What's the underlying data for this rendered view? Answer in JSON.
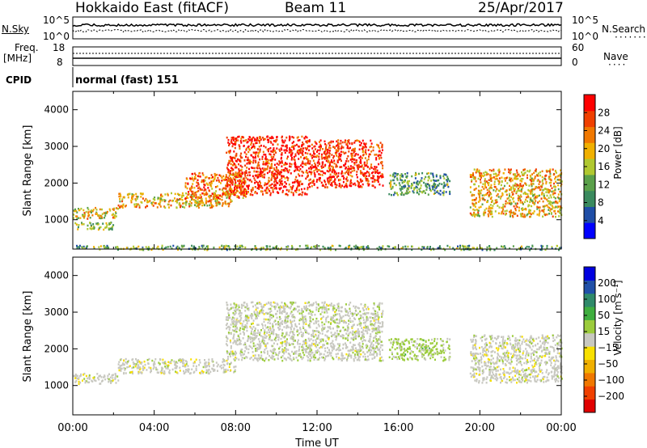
{
  "header": {
    "radar": "Hokkaido East (fitACF)",
    "beam": "Beam 11",
    "date": "25/Apr/2017"
  },
  "status_panels": {
    "nsky_label": "N.Sky",
    "nsky_ticks": [
      "10^5",
      "10^0"
    ],
    "nsearch_label": "N.Search",
    "nsearch_ticks": [
      "10^5",
      "10^0"
    ],
    "freq_label": "Freq.",
    "freq_unit": "[MHz]",
    "freq_ticks": [
      "18",
      "8"
    ],
    "nave_label": "Nave",
    "nave_ticks": [
      "60",
      "0"
    ],
    "cpid_label": "CPID",
    "cpid_mode": "normal (fast) 151"
  },
  "colors": {
    "power_scale": [
      "#0000ff",
      "#1f4ea6",
      "#3a8a5e",
      "#5aa04a",
      "#b0c830",
      "#f0b000",
      "#f07800",
      "#f04000",
      "#ff0000"
    ],
    "velocity_scale": [
      "#e00000",
      "#f04000",
      "#f07800",
      "#f0b000",
      "#f8e000",
      "#c8c8c0",
      "#9ccc3c",
      "#3fae3f",
      "#2f8a6a",
      "#2050a8",
      "#0000e0"
    ]
  },
  "chart_data": [
    {
      "type": "heatmap",
      "name": "power",
      "xlabel": "",
      "ylabel": "Slant Range [km]",
      "xlim_hours": [
        0,
        24
      ],
      "ylim_km": [
        200,
        4500
      ],
      "yticks": [
        "1000",
        "2000",
        "3000",
        "4000"
      ],
      "colorbar": {
        "label": "Power [dB]",
        "ticks": [
          "4",
          "8",
          "12",
          "16",
          "20",
          "24",
          "28"
        ],
        "range": [
          0,
          32
        ]
      },
      "echo_regions": [
        {
          "t": [
            0.0,
            2.2
          ],
          "r": [
            1050,
            1350
          ],
          "value": 18
        },
        {
          "t": [
            0.0,
            2.0
          ],
          "r": [
            750,
            950
          ],
          "value": 14
        },
        {
          "t": [
            2.2,
            7.8
          ],
          "r": [
            1350,
            1750
          ],
          "value": 20
        },
        {
          "t": [
            5.5,
            8.5
          ],
          "r": [
            1600,
            2300
          ],
          "value": 24
        },
        {
          "t": [
            7.5,
            11.5
          ],
          "r": [
            1700,
            3300
          ],
          "value": 28
        },
        {
          "t": [
            11.5,
            15.2
          ],
          "r": [
            1900,
            3200
          ],
          "value": 28
        },
        {
          "t": [
            15.5,
            18.5
          ],
          "r": [
            1700,
            2300
          ],
          "value": 12
        },
        {
          "t": [
            19.5,
            24.0
          ],
          "r": [
            1100,
            2400
          ],
          "value": 20
        },
        {
          "t": [
            0.0,
            24.0
          ],
          "r": [
            200,
            320
          ],
          "value": 12
        }
      ]
    },
    {
      "type": "heatmap",
      "name": "velocity",
      "xlabel": "Time UT",
      "ylabel": "Slant Range [km]",
      "xlim_hours": [
        0,
        24
      ],
      "ylim_km": [
        200,
        4500
      ],
      "xticks": [
        "00:00",
        "04:00",
        "08:00",
        "12:00",
        "16:00",
        "20:00",
        "00:00"
      ],
      "yticks": [
        "1000",
        "2000",
        "3000",
        "4000"
      ],
      "colorbar": {
        "label": "Velocity [m s⁻¹]",
        "ticks": [
          "200",
          "100",
          "50",
          "15",
          "−15",
          "−50",
          "−100",
          "−200"
        ],
        "range": [
          -250,
          250
        ]
      },
      "echo_regions": [
        {
          "t": [
            0.0,
            2.2
          ],
          "r": [
            1050,
            1350
          ],
          "value": 0
        },
        {
          "t": [
            2.2,
            8.0
          ],
          "r": [
            1350,
            1750
          ],
          "value": 0
        },
        {
          "t": [
            7.5,
            15.2
          ],
          "r": [
            1700,
            3300
          ],
          "value": 5
        },
        {
          "t": [
            15.5,
            18.5
          ],
          "r": [
            1700,
            2300
          ],
          "value": 40
        },
        {
          "t": [
            19.5,
            24.0
          ],
          "r": [
            1100,
            2400
          ],
          "value": 0
        }
      ]
    }
  ]
}
